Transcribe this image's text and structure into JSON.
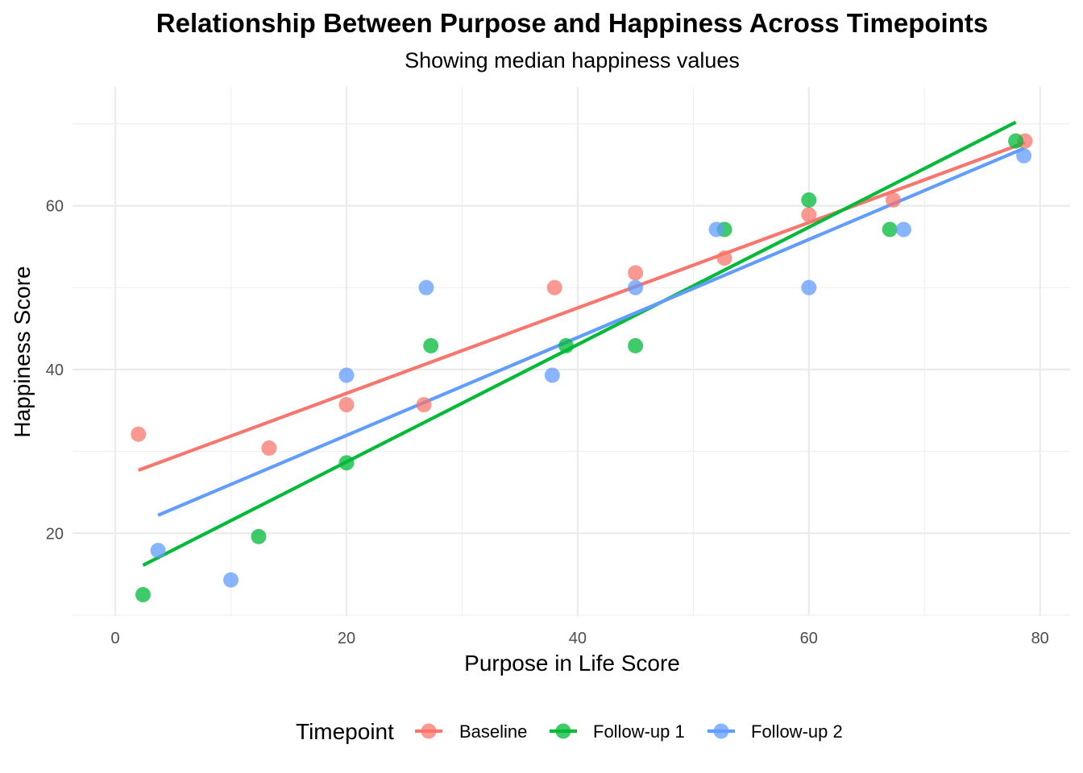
{
  "chart_data": {
    "type": "scatter",
    "title": "Relationship Between Purpose and Happiness Across Timepoints",
    "subtitle": "Showing median happiness values",
    "xlabel": "Purpose in Life Score",
    "ylabel": "Happiness Score",
    "xlim": [
      -3.7,
      82.6
    ],
    "ylim": [
      9.9,
      74.5
    ],
    "x_ticks": [
      0,
      20,
      40,
      60,
      80
    ],
    "y_ticks": [
      20,
      40,
      60
    ],
    "grid": true,
    "legend": {
      "title": "Timepoint",
      "position": "bottom"
    },
    "series": [
      {
        "name": "Baseline",
        "color": "#F8766D",
        "points": [
          [
            2,
            32.1
          ],
          [
            13.3,
            30.4
          ],
          [
            20,
            35.7
          ],
          [
            26.7,
            35.7
          ],
          [
            38,
            50
          ],
          [
            45,
            51.8
          ],
          [
            52.7,
            53.6
          ],
          [
            60,
            58.9
          ],
          [
            67.3,
            60.7
          ],
          [
            78.7,
            67.9
          ]
        ],
        "trend": {
          "x": [
            2,
            78.7
          ],
          "y": [
            27.7,
            67.7
          ]
        }
      },
      {
        "name": "Follow-up 1",
        "color": "#00BA38",
        "points": [
          [
            2.4,
            12.5
          ],
          [
            12.4,
            19.6
          ],
          [
            20,
            28.6
          ],
          [
            27.3,
            42.9
          ],
          [
            39,
            42.9
          ],
          [
            45,
            42.9
          ],
          [
            52.7,
            57.1
          ],
          [
            60,
            60.7
          ],
          [
            67,
            57.1
          ],
          [
            77.9,
            67.9
          ]
        ],
        "trend": {
          "x": [
            2.4,
            77.9
          ],
          "y": [
            16.1,
            70.2
          ]
        }
      },
      {
        "name": "Follow-up 2",
        "color": "#619CFF",
        "points": [
          [
            3.7,
            17.9
          ],
          [
            10,
            14.3
          ],
          [
            20,
            39.3
          ],
          [
            26.9,
            50
          ],
          [
            37.8,
            39.3
          ],
          [
            45,
            50
          ],
          [
            52,
            57.1
          ],
          [
            60,
            50
          ],
          [
            68.2,
            57.1
          ],
          [
            78.6,
            66.1
          ]
        ],
        "trend": {
          "x": [
            3.7,
            78.6
          ],
          "y": [
            22.2,
            67
          ]
        }
      }
    ]
  }
}
